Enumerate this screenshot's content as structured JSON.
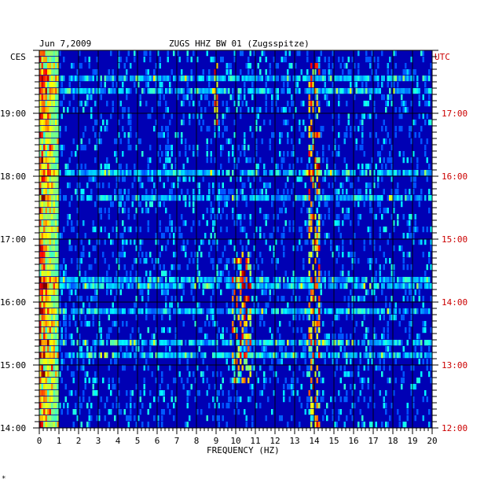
{
  "header": {
    "date": "Jun 7,2009",
    "station": "ZUGS HHZ BW 01 (Zugsspitze)",
    "left_tz": "CES",
    "right_tz": "UTC"
  },
  "footer": {
    "mark": "*"
  },
  "colors": {
    "background_blue": "#0000b4",
    "left_labels": "#000000",
    "right_labels": "#cc0000"
  },
  "chart_data": {
    "type": "heatmap",
    "title": "ZUGS HHZ BW 01 (Zugsspitze)",
    "xlabel": "FREQUENCY (HZ)",
    "ylabel": "",
    "xlim": [
      0,
      20
    ],
    "x_ticks": [
      "0",
      "1",
      "2",
      "3",
      "4",
      "5",
      "6",
      "7",
      "8",
      "9",
      "10",
      "11",
      "12",
      "13",
      "14",
      "15",
      "16",
      "17",
      "18",
      "19",
      "20"
    ],
    "ylim_local_hours": [
      14,
      20
    ],
    "y_ticks_left": [
      "14:00",
      "15:00",
      "16:00",
      "17:00",
      "18:00",
      "19:00"
    ],
    "y_ticks_right": [
      "12:00",
      "13:00",
      "14:00",
      "15:00",
      "16:00",
      "17:00"
    ],
    "grid": true,
    "colormap": "jet",
    "rows": 60,
    "row_minutes": 6,
    "features": [
      {
        "band_hz": [
          0.0,
          1.0
        ],
        "description": "persistent strong energy near 0-1 Hz"
      },
      {
        "band_hz": [
          9.8,
          10.8
        ],
        "time_range_local": [
          "14:40",
          "16:50"
        ],
        "description": "intermittent energy bursts near 10 Hz"
      },
      {
        "band_hz": [
          13.7,
          14.3
        ],
        "time_range_local": [
          "14:00",
          "19:50"
        ],
        "description": "narrow line near 14 Hz"
      },
      {
        "band_hz": [
          8.9,
          9.1
        ],
        "time_range_local": [
          "18:50",
          "19:50"
        ],
        "description": "narrow line near 9 Hz"
      }
    ]
  }
}
